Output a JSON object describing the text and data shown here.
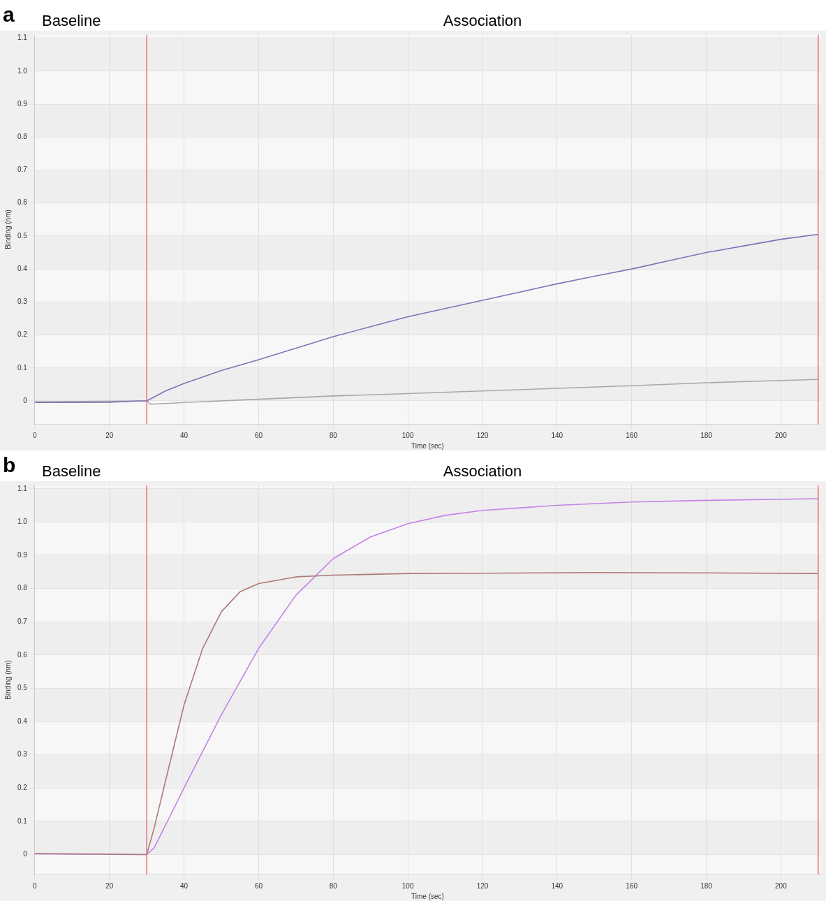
{
  "chart_data": [
    {
      "type": "line",
      "title": "a",
      "xlabel": "Time (sec)",
      "ylabel": "Binding (nm)",
      "annotations": [
        "Baseline",
        "Association"
      ],
      "xlim": [
        0,
        210.6
      ],
      "xticks": [
        0,
        20,
        40,
        60,
        80,
        100,
        120,
        140,
        160,
        180,
        200
      ],
      "ylim": [
        -0.07,
        1.11
      ],
      "yticks": [
        0,
        0.1,
        0.2,
        0.3,
        0.4,
        0.5,
        0.6,
        0.7,
        0.8,
        0.9,
        {
          "value": 1.0,
          "label": "1.0"
        },
        1.1
      ],
      "grid": true,
      "legend": false,
      "marker": "none",
      "line_style": "solid",
      "ref_lines": [
        {
          "axis": "x",
          "value": 30,
          "color": "#e87070"
        },
        {
          "axis": "x",
          "value": 210,
          "color": "#e87070"
        }
      ],
      "series": [
        {
          "color": "#7b74b8",
          "x": [
            0,
            10,
            20,
            28,
            30,
            35,
            40,
            50,
            60,
            70,
            80,
            90,
            100,
            110,
            120,
            130,
            140,
            150,
            160,
            170,
            180,
            190,
            200,
            210
          ],
          "values": [
            -0.005,
            -0.005,
            -0.004,
            0,
            0,
            0.03,
            0.053,
            0.092,
            0.125,
            0.16,
            0.195,
            0.225,
            0.255,
            0.28,
            0.305,
            0.33,
            0.355,
            0.378,
            0.4,
            0.425,
            0.45,
            0.47,
            0.49,
            0.505
          ]
        },
        {
          "color": "#a8a8a8",
          "x": [
            0,
            30,
            31,
            40,
            60,
            80,
            100,
            120,
            140,
            160,
            180,
            200,
            210
          ],
          "values": [
            -0.003,
            0,
            -0.01,
            -0.005,
            0.005,
            0.015,
            0.022,
            0.03,
            0.038,
            0.046,
            0.055,
            0.062,
            0.065
          ]
        }
      ]
    },
    {
      "type": "line",
      "title": "b",
      "xlabel": "Time (sec)",
      "ylabel": "Binding (nm)",
      "annotations": [
        "Baseline",
        "Association"
      ],
      "xlim": [
        0,
        210.6
      ],
      "xticks": [
        0,
        20,
        40,
        60,
        80,
        100,
        120,
        140,
        160,
        180,
        200
      ],
      "ylim": [
        -0.06,
        1.11
      ],
      "yticks": [
        0,
        0.1,
        0.2,
        0.3,
        0.4,
        0.5,
        0.6,
        0.7,
        0.8,
        0.9,
        {
          "value": 1.0,
          "label": "1.0"
        },
        1.1
      ],
      "grid": true,
      "legend": false,
      "marker": "none",
      "line_style": "solid",
      "ref_lines": [
        {
          "axis": "x",
          "value": 30,
          "color": "#e87070"
        },
        {
          "axis": "x",
          "value": 210,
          "color": "#e87070"
        }
      ],
      "series": [
        {
          "color": "#b07878",
          "x": [
            0,
            10,
            20,
            30,
            32,
            35,
            40,
            45,
            50,
            55,
            60,
            70,
            80,
            100,
            120,
            150,
            180,
            210
          ],
          "values": [
            0.003,
            0.002,
            0.001,
            0,
            0.08,
            0.22,
            0.45,
            0.62,
            0.73,
            0.79,
            0.815,
            0.835,
            0.84,
            0.845,
            0.846,
            0.848,
            0.847,
            0.845
          ]
        },
        {
          "color": "#c383e8",
          "x": [
            0,
            10,
            30,
            32,
            40,
            50,
            60,
            70,
            80,
            90,
            100,
            110,
            120,
            140,
            160,
            180,
            210
          ],
          "values": [
            0.002,
            0.001,
            0,
            0.02,
            0.2,
            0.42,
            0.62,
            0.78,
            0.89,
            0.955,
            0.995,
            1.02,
            1.035,
            1.05,
            1.06,
            1.065,
            1.07
          ]
        }
      ]
    }
  ]
}
